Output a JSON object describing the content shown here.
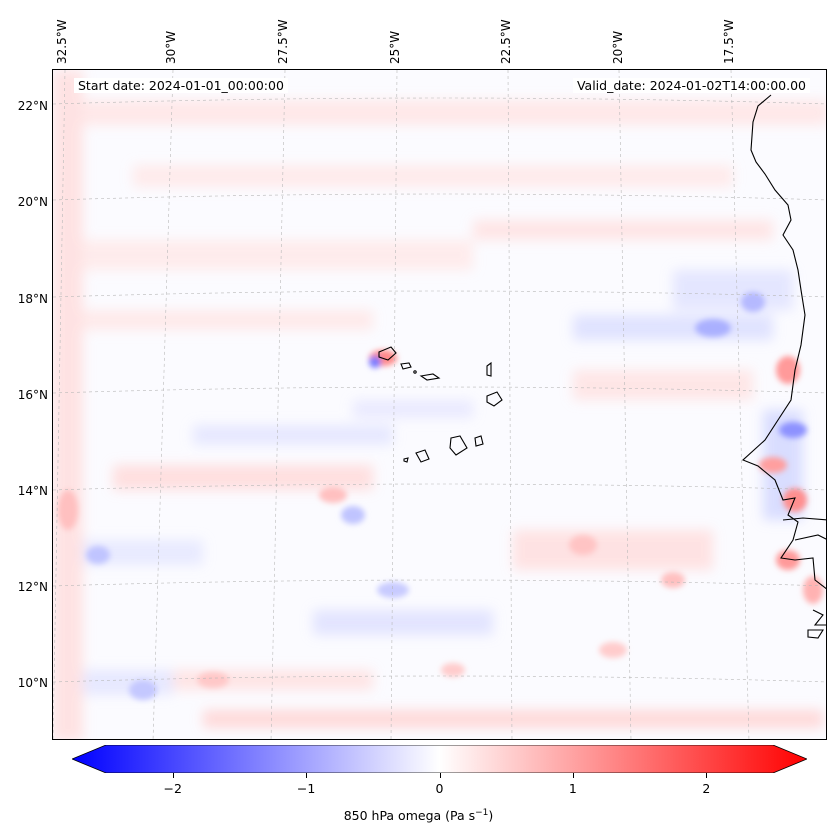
{
  "map": {
    "title_left": "Start date: 2024-01-01_00:00:00",
    "title_right": "Valid_date: 2024-01-02T14:00:00.00",
    "longitude_labels": [
      "32.5°W",
      "30°W",
      "27.5°W",
      "25°W",
      "22.5°W",
      "20°W",
      "17.5°W"
    ],
    "latitude_labels": [
      "22°N",
      "20°N",
      "18°N",
      "16°N",
      "14°N",
      "12°N",
      "10°N"
    ],
    "features": [
      "Cape Verde islands",
      "West African coastline",
      "omega field contours"
    ]
  },
  "colorbar": {
    "min": -2.5,
    "max": 2.5,
    "ticks": [
      "−2",
      "−1",
      "0",
      "1",
      "2"
    ],
    "tick_values": [
      -2,
      -1,
      0,
      1,
      2
    ],
    "label_main": "850 hPa omega (Pa s",
    "label_exp": "−1",
    "label_close": ")",
    "color_low": "#0000ff",
    "color_mid": "#ffffff",
    "color_high": "#ff0000"
  }
}
